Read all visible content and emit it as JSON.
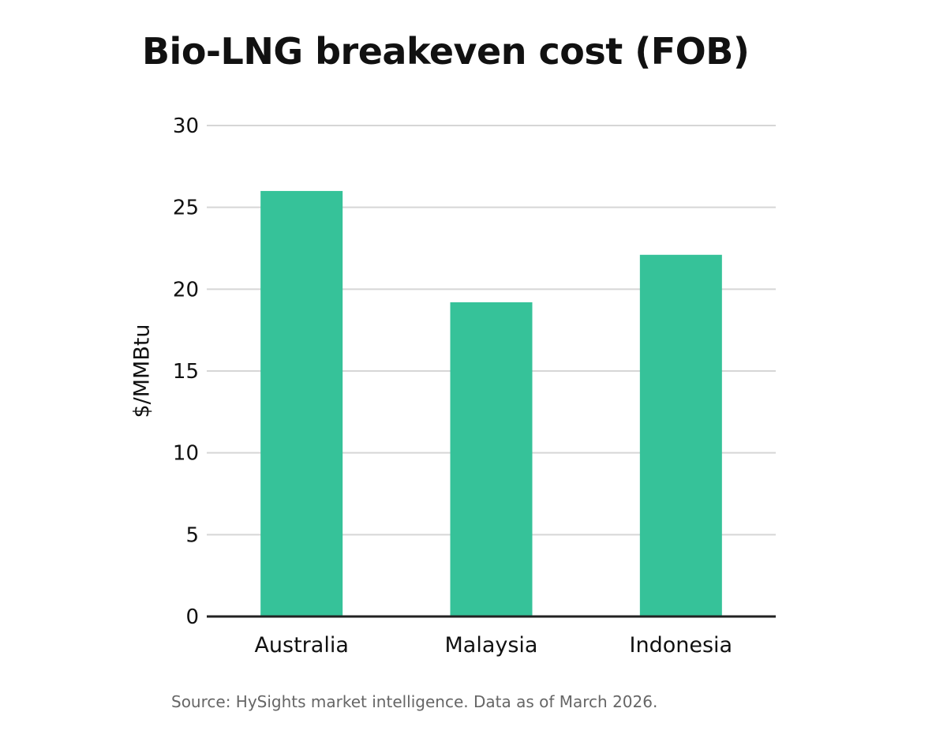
{
  "chart_data": {
    "type": "bar",
    "title": "Bio-LNG breakeven cost (FOB)",
    "xlabel": "",
    "ylabel": "$/MMBtu",
    "categories": [
      "Australia",
      "Malaysia",
      "Indonesia"
    ],
    "values": [
      26.0,
      19.2,
      22.1
    ],
    "ylim": [
      0,
      30
    ],
    "yticks": [
      0,
      5,
      10,
      15,
      20,
      25,
      30
    ],
    "grid": true,
    "legend": "none",
    "bar_color": "#36c299",
    "source": "Source: HySights market intelligence. Data as of March 2026."
  }
}
